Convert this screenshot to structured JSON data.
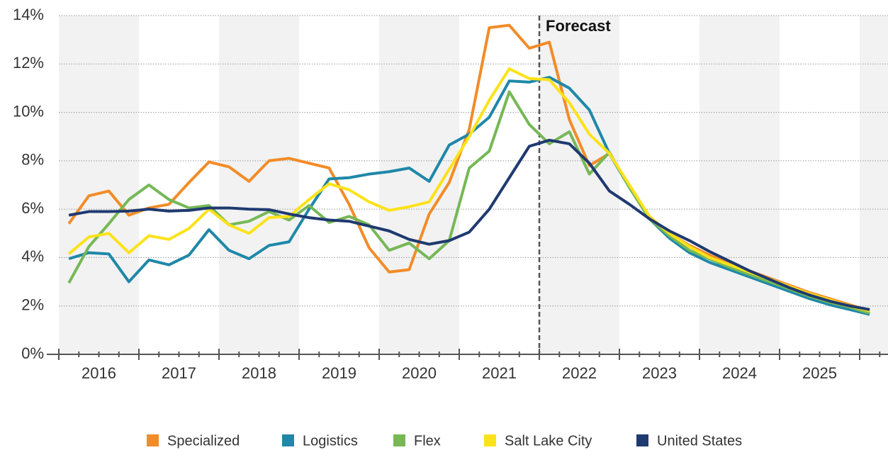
{
  "chart_data": {
    "type": "line",
    "categories": [
      null,
      "2016",
      null,
      null,
      null,
      "2017",
      null,
      null,
      null,
      "2018",
      null,
      null,
      null,
      "2019",
      null,
      null,
      null,
      "2020",
      null,
      null,
      null,
      "2021",
      null,
      null,
      null,
      "2022",
      null,
      null,
      null,
      "2023",
      null,
      null,
      null,
      "2024",
      null,
      null,
      null,
      "2025",
      null,
      null,
      null
    ],
    "series": [
      {
        "name": "Specialized",
        "color": "#f28c28",
        "values": [
          5.4,
          6.55,
          6.75,
          5.75,
          6.05,
          6.2,
          7.1,
          7.95,
          7.75,
          7.15,
          8.0,
          8.1,
          7.9,
          7.7,
          6.2,
          4.4,
          3.4,
          3.5,
          5.8,
          7.1,
          9.3,
          13.5,
          13.6,
          12.65,
          12.9,
          9.7,
          7.8,
          8.3,
          6.9,
          5.7,
          5.0,
          4.5,
          4.1,
          3.75,
          3.45,
          3.15,
          2.85,
          2.55,
          2.3,
          2.05,
          1.8
        ]
      },
      {
        "name": "Logistics",
        "color": "#1f88a8",
        "values": [
          3.95,
          4.2,
          4.15,
          3.0,
          3.9,
          3.7,
          4.1,
          5.15,
          4.3,
          3.95,
          4.5,
          4.65,
          6.0,
          7.25,
          7.3,
          7.45,
          7.55,
          7.7,
          7.15,
          8.65,
          9.1,
          9.8,
          11.3,
          11.25,
          11.45,
          11.0,
          10.1,
          8.3,
          6.9,
          5.6,
          4.8,
          4.2,
          3.8,
          3.5,
          3.2,
          2.9,
          2.6,
          2.3,
          2.05,
          1.85,
          1.65
        ]
      },
      {
        "name": "Flex",
        "color": "#76b856",
        "values": [
          2.95,
          4.45,
          5.4,
          6.4,
          7.0,
          6.4,
          6.05,
          6.15,
          5.35,
          5.5,
          5.9,
          5.55,
          6.15,
          5.45,
          5.7,
          5.35,
          4.3,
          4.6,
          3.95,
          4.7,
          7.7,
          8.4,
          10.85,
          9.5,
          8.7,
          9.2,
          7.45,
          8.35,
          6.9,
          5.6,
          4.9,
          4.3,
          3.95,
          3.6,
          3.3,
          3.0,
          2.7,
          2.4,
          2.15,
          1.95,
          1.7
        ]
      },
      {
        "name": "Salt Lake City",
        "color": "#fce21a",
        "values": [
          4.15,
          4.85,
          5.0,
          4.2,
          4.9,
          4.75,
          5.2,
          6.0,
          5.35,
          5.0,
          5.65,
          5.7,
          6.4,
          7.05,
          6.8,
          6.3,
          5.95,
          6.1,
          6.3,
          7.65,
          9.0,
          10.5,
          11.8,
          11.4,
          11.35,
          10.4,
          9.1,
          8.3,
          7.0,
          5.7,
          5.0,
          4.45,
          4.0,
          3.7,
          3.4,
          3.1,
          2.8,
          2.5,
          2.25,
          2.0,
          1.8
        ]
      },
      {
        "name": "United States",
        "color": "#1f3a70",
        "values": [
          5.75,
          5.9,
          5.9,
          5.92,
          6.0,
          5.92,
          5.95,
          6.05,
          6.05,
          6.0,
          5.98,
          5.8,
          5.65,
          5.55,
          5.5,
          5.3,
          5.1,
          4.75,
          4.55,
          4.7,
          5.05,
          6.0,
          7.3,
          8.6,
          8.85,
          8.7,
          7.9,
          6.75,
          6.2,
          5.6,
          5.1,
          4.7,
          4.25,
          3.85,
          3.45,
          3.1,
          2.75,
          2.45,
          2.2,
          2.0,
          1.85
        ]
      }
    ],
    "ylim": [
      0,
      14
    ],
    "yticks": [
      {
        "value": 0,
        "label": "0%"
      },
      {
        "value": 2,
        "label": "2%"
      },
      {
        "value": 4,
        "label": "4%"
      },
      {
        "value": 6,
        "label": "6%"
      },
      {
        "value": 8,
        "label": "8%"
      },
      {
        "value": 10,
        "label": "10%"
      },
      {
        "value": 12,
        "label": "12%"
      },
      {
        "value": 14,
        "label": "14%"
      }
    ],
    "grid": true,
    "legend": "bottom",
    "forecast": {
      "label": "Forecast",
      "index": 24
    }
  }
}
